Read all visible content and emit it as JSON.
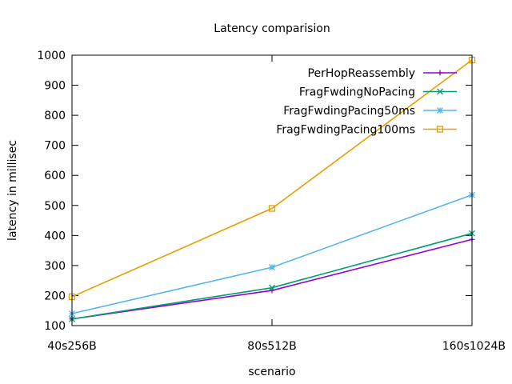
{
  "chart_data": {
    "type": "line",
    "title": "Latency comparision",
    "xlabel": "scenario",
    "ylabel": "latency in millisec",
    "categories": [
      "40s256B",
      "80s512B",
      "160s1024B"
    ],
    "ylim": [
      100,
      1000
    ],
    "yticks": [
      100,
      200,
      300,
      400,
      500,
      600,
      700,
      800,
      900,
      1000
    ],
    "grid": false,
    "legend_position": "top-right",
    "series": [
      {
        "name": "PerHopReassembly",
        "color": "#9400d3",
        "marker": "plus",
        "values": [
          122,
          217,
          387
        ]
      },
      {
        "name": "FragFwdingNoPacing",
        "color": "#009e73",
        "marker": "cross",
        "values": [
          122,
          226,
          407
        ]
      },
      {
        "name": "FragFwdingPacing50ms",
        "color": "#56b4e9",
        "marker": "star",
        "values": [
          140,
          294,
          535
        ]
      },
      {
        "name": "FragFwdingPacing100ms",
        "color": "#e69f00",
        "marker": "square",
        "values": [
          196,
          490,
          984
        ]
      }
    ]
  }
}
